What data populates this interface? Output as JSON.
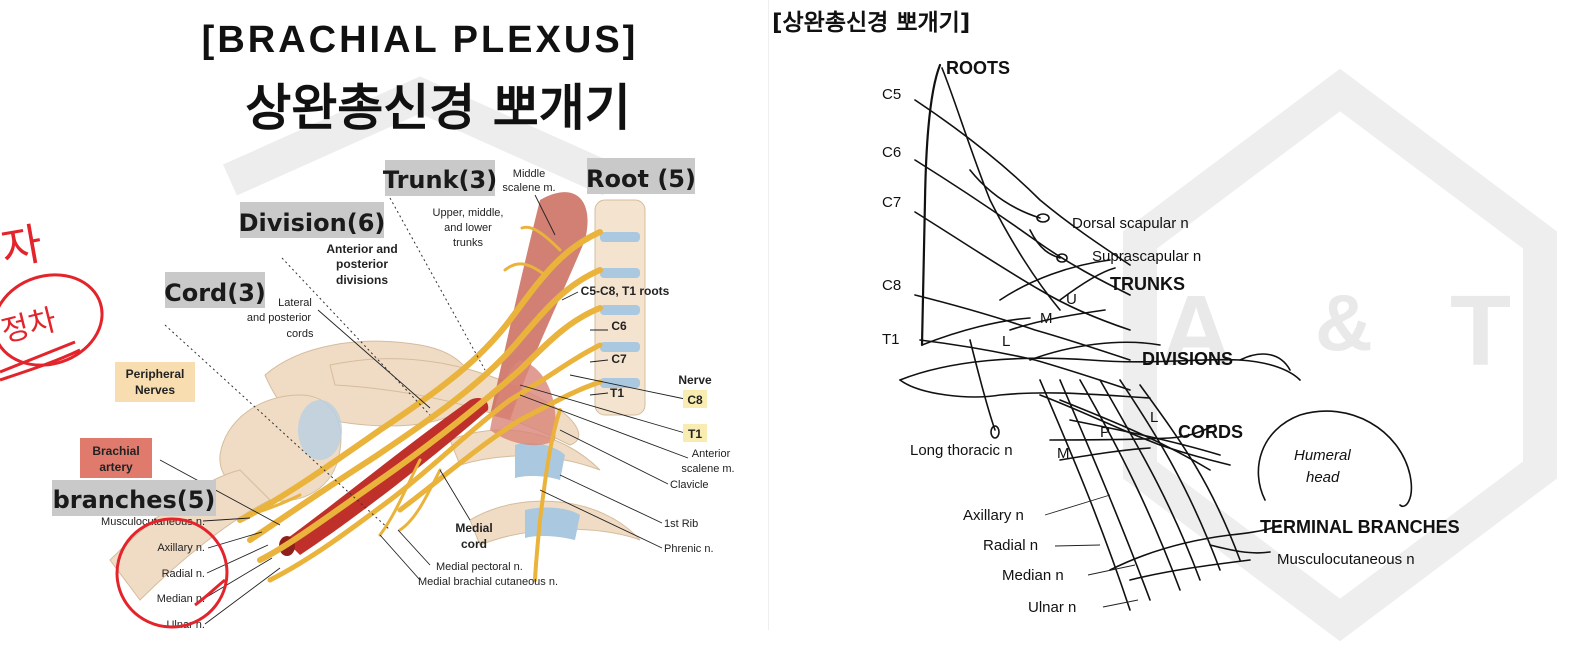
{
  "left": {
    "title_en": "[BRACHIAL PLEXUS]",
    "title_ko": "상완총신경 뽀개기",
    "tags": {
      "trunk": "Trunk(3)",
      "root": "Root (5)",
      "division": "Division(6)",
      "cord": "Cord(3)",
      "branches": "branches(5)"
    },
    "labels": {
      "middle_scalene": [
        "Middle",
        "scalene m."
      ],
      "upper_trunks": [
        "Upper, middle,",
        "and lower",
        "trunks"
      ],
      "ant_post_div": [
        "Anterior and",
        "posterior",
        "divisions"
      ],
      "lateral_cords": [
        "Lateral",
        "and posterior",
        "cords"
      ],
      "roots": "C5-C8, T1 roots",
      "c6": "C6",
      "c7": "C7",
      "t1": "T1",
      "nerve": "Nerve",
      "c8_box": "C8",
      "t1_box": "T1",
      "anterior_scalene": [
        "Anterior",
        "scalene m."
      ],
      "clavicle": "Clavicle",
      "first_rib": "1st Rib",
      "phrenic": "Phrenic n.",
      "peripheral": [
        "Peripheral",
        "Nerves"
      ],
      "brachial_artery": [
        "Brachial",
        "artery"
      ],
      "musculocutaneous": "Musculocutaneous n.",
      "axillary": "Axillary n.",
      "radial": "Radial n.",
      "median": "Median n.",
      "ulnar": "Ulnar n.",
      "medial_cord": [
        "Medial",
        "cord"
      ],
      "medial_pectoral": "Medial pectoral n.",
      "medial_brachial": "Medial brachial cutaneous n."
    },
    "handwriting": [
      "자",
      "정차"
    ]
  },
  "right": {
    "title_ko": "[상완총신경 뽀개기]",
    "roots_header": "ROOTS",
    "roots": [
      "C5",
      "C6",
      "C7",
      "C8",
      "T1"
    ],
    "stages": {
      "trunks": "TRUNKS",
      "divisions": "DIVISIONS",
      "cords": "CORDS",
      "terminal": "TERMINAL BRANCHES"
    },
    "nerves": {
      "dorsal_scapular": "Dorsal scapular n",
      "suprascapular": "Suprascapular n",
      "long_thoracic": "Long thoracic n",
      "axillary": "Axillary n",
      "radial": "Radial n",
      "median": "Median n",
      "ulnar": "Ulnar n",
      "musculocutaneous": "Musculocutaneous n"
    },
    "letters": {
      "u": "U",
      "m": "M",
      "l": "L",
      "l2": "L",
      "p": "P",
      "m2": "M"
    },
    "humeral": [
      "Humeral",
      "head"
    ],
    "watermark": [
      "A",
      "&",
      "T"
    ]
  },
  "colors": {
    "nerve": "#e9b33c",
    "artery": "#c0302a",
    "muscle": "#c96a5a",
    "bone": "#f0dcc4",
    "vertebra": "#aac8e0",
    "tag_gray": "#c9c9c9",
    "peripheral_box": "#f7ddb0",
    "artery_box": "#e07a6d",
    "label_box": "#f8ecb0",
    "annotation_red": "#e3242b"
  }
}
